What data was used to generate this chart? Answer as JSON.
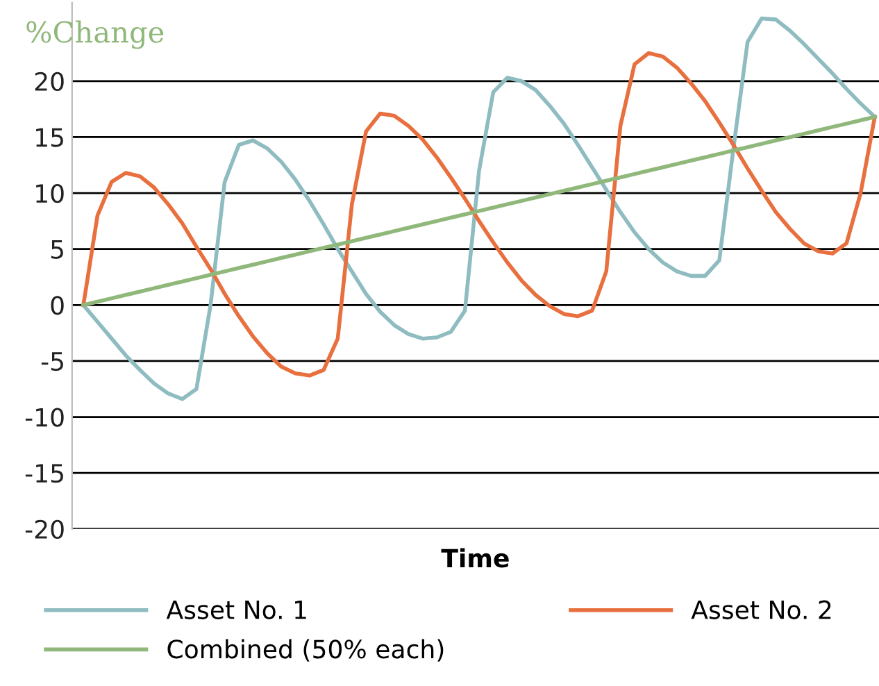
{
  "chart_data": {
    "type": "line",
    "ylabel": "%Change",
    "xlabel": "Time",
    "categories": [
      null,
      null,
      null,
      null,
      null,
      null,
      null,
      null,
      null,
      null,
      null,
      null,
      null,
      null,
      null,
      null,
      null,
      null,
      null,
      null,
      null,
      null,
      null,
      null,
      null,
      null,
      null,
      null,
      null,
      null,
      null,
      null,
      null,
      null,
      null,
      null,
      null,
      null,
      null,
      null,
      null,
      null,
      null,
      null,
      null,
      null,
      null,
      null,
      null,
      null,
      null,
      null,
      null,
      null,
      null,
      null,
      null
    ],
    "series": [
      {
        "name": "Asset No. 1",
        "color": "#8fbcc1",
        "values": [
          0,
          -1.5,
          -3,
          -4.5,
          -5.8,
          -7,
          -7.9,
          -8.4,
          -7.5,
          0,
          11,
          14.3,
          14.7,
          14,
          12.8,
          11.2,
          9.3,
          7.2,
          5,
          3,
          1,
          -0.6,
          -1.8,
          -2.6,
          -3,
          -2.9,
          -2.4,
          -0.5,
          12,
          19,
          20.3,
          20,
          19.2,
          17.8,
          16.2,
          14.3,
          12.3,
          10.3,
          8.3,
          6.5,
          5,
          3.8,
          3,
          2.6,
          2.6,
          4,
          14,
          23.5,
          25.6,
          25.5,
          24.5,
          23.3,
          22,
          20.7,
          19.3,
          18,
          16.8
        ]
      },
      {
        "name": "Asset No. 2",
        "color": "#e8703f",
        "values": [
          0,
          8,
          11,
          11.8,
          11.5,
          10.5,
          9,
          7.3,
          5.2,
          3.2,
          1,
          -1,
          -2.8,
          -4.3,
          -5.5,
          -6.1,
          -6.3,
          -5.8,
          -3,
          9,
          15.5,
          17.1,
          16.9,
          16,
          14.8,
          13.2,
          11.4,
          9.5,
          7.5,
          5.6,
          3.8,
          2.2,
          0.9,
          -0.1,
          -0.8,
          -1,
          -0.5,
          3,
          16,
          21.5,
          22.5,
          22.2,
          21.2,
          19.8,
          18.2,
          16.3,
          14.3,
          12.2,
          10.2,
          8.3,
          6.8,
          5.5,
          4.8,
          4.6,
          5.5,
          10,
          16.8
        ]
      },
      {
        "name": "Combined (50% each)",
        "color": "#8fb87a",
        "values": [
          0,
          0.3,
          0.6,
          0.9,
          1.2,
          1.5,
          1.8,
          2.1,
          2.4,
          2.7,
          3,
          3.3,
          3.6,
          3.9,
          4.2,
          4.5,
          4.8,
          5.1,
          5.4,
          5.7,
          6,
          6.3,
          6.6,
          6.9,
          7.2,
          7.5,
          7.8,
          8.1,
          8.4,
          8.7,
          9,
          9.3,
          9.6,
          9.9,
          10.2,
          10.5,
          10.8,
          11.1,
          11.4,
          11.7,
          12,
          12.3,
          12.6,
          12.9,
          13.2,
          13.5,
          13.8,
          14.1,
          14.4,
          14.7,
          15,
          15.3,
          15.6,
          15.9,
          16.2,
          16.5,
          16.8
        ]
      }
    ],
    "ylim": [
      -20,
      27
    ],
    "yticks": [
      -20,
      -15,
      -10,
      -5,
      0,
      5,
      10,
      15,
      20
    ],
    "grid": "y",
    "legend": "bottom",
    "tick_labels": "y",
    "marker": "none",
    "line_style": "solid"
  }
}
